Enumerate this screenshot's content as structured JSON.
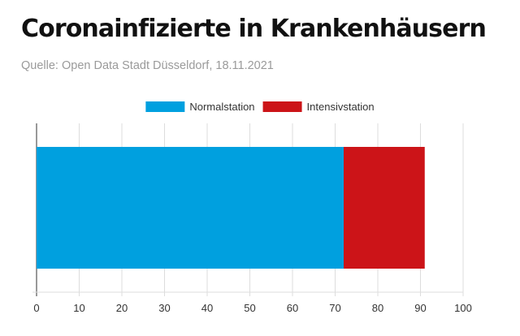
{
  "header": {
    "title": "Coronainfizierte in Krankenhäusern",
    "subtitle": "Quelle: Open Data Stadt Düsseldorf, 18.11.2021"
  },
  "chart_data": {
    "type": "bar",
    "orientation": "horizontal",
    "stacked": true,
    "title": "Coronainfizierte in Krankenhäusern",
    "subtitle": "Quelle: Open Data Stadt Düsseldorf, 18.11.2021",
    "categories": [
      ""
    ],
    "series": [
      {
        "name": "Normalstation",
        "values": [
          72
        ],
        "color": "#00a0df"
      },
      {
        "name": "Intensivstation",
        "values": [
          19
        ],
        "color": "#cc1418"
      }
    ],
    "xlim": [
      0,
      100
    ],
    "xticks": [
      0,
      10,
      20,
      30,
      40,
      50,
      60,
      70,
      80,
      90,
      100
    ],
    "grid": true,
    "legend": "top-center"
  }
}
